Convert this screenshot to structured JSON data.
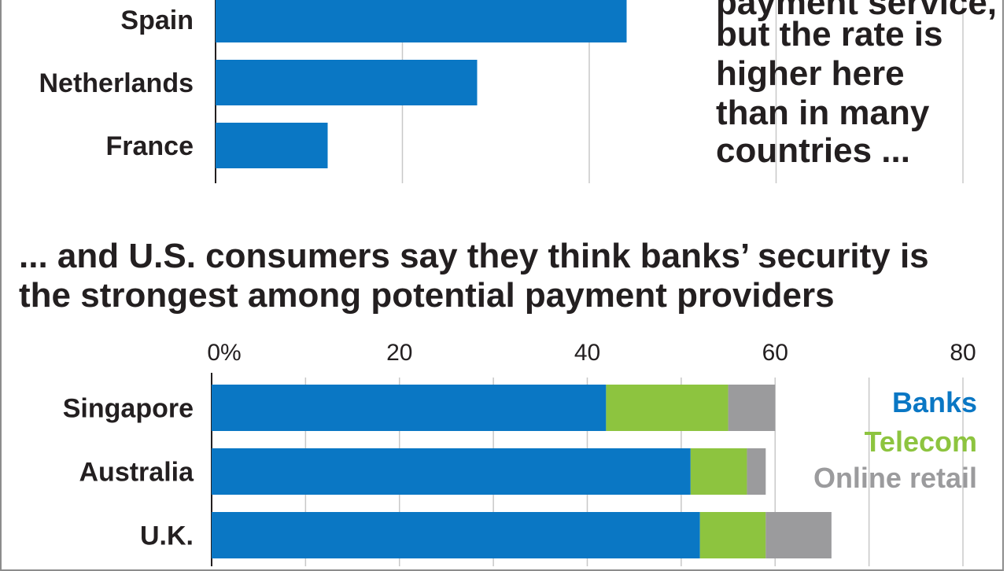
{
  "annotation": {
    "lines": [
      "payment service,",
      "but the rate is",
      "higher here",
      "than in many",
      "countries ..."
    ]
  },
  "headline": {
    "lines": [
      "... and U.S. consumers say they think banks’ security is",
      "the strongest among potential payment providers"
    ]
  },
  "colors": {
    "banks": "#0a77c4",
    "telecom": "#8dc43f",
    "online_retail": "#9b9b9d",
    "grid": "#c8c8c8",
    "axis": "#231f20"
  },
  "chart_data": [
    {
      "type": "bar",
      "orientation": "horizontal",
      "categories": [
        "Spain",
        "Netherlands",
        "France"
      ],
      "values": [
        44,
        28,
        12
      ],
      "xlim": [
        0,
        80
      ],
      "grid": true,
      "tick_values": [
        0,
        20,
        40,
        60,
        80
      ],
      "note": "partially visible chart, top cropped"
    },
    {
      "type": "bar",
      "orientation": "horizontal",
      "stacked": true,
      "categories": [
        "Singapore",
        "Australia",
        "U.K."
      ],
      "series": [
        {
          "name": "Banks",
          "values": [
            42,
            51,
            52
          ]
        },
        {
          "name": "Telecom",
          "values": [
            13,
            6,
            7
          ]
        },
        {
          "name": "Online retail",
          "values": [
            5,
            2,
            7
          ]
        }
      ],
      "xlim": [
        0,
        80
      ],
      "tick_labels": [
        "0%",
        "20",
        "40",
        "60",
        "80"
      ],
      "tick_values": [
        0,
        20,
        40,
        60,
        80
      ],
      "grid": true,
      "legend_placement": "right"
    }
  ]
}
